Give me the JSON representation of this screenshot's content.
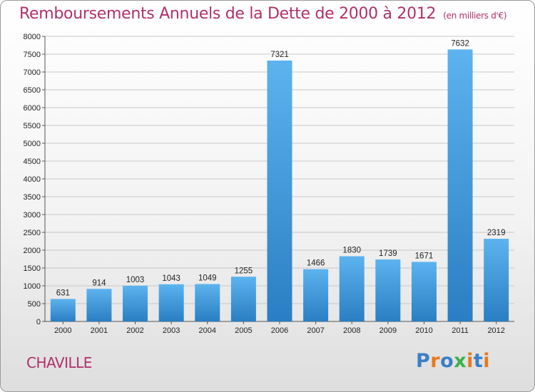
{
  "title": "Remboursements Annuels de la Dette de 2000 à 2012",
  "unit": "(en milliers d'€)",
  "commune": "CHAVILLE",
  "logo": {
    "text": "Proxiti",
    "letters": [
      "P",
      "r",
      "o",
      "x",
      "i",
      "t",
      "i"
    ],
    "colors": [
      "#3a7fc8",
      "#e8791e",
      "#3a7fc8",
      "#3bb24a",
      "#e8791e",
      "#3a7fc8",
      "#e8791e"
    ]
  },
  "colors": {
    "bar": "#4fa6e5",
    "bar_dark": "#2a7ec3",
    "title": "#b0306a"
  },
  "chart_data": {
    "type": "bar",
    "categories": [
      "2000",
      "2001",
      "2002",
      "2003",
      "2004",
      "2005",
      "2006",
      "2007",
      "2008",
      "2009",
      "2010",
      "2011",
      "2012"
    ],
    "values": [
      631,
      914,
      1003,
      1043,
      1049,
      1255,
      7321,
      1466,
      1830,
      1739,
      1671,
      7632,
      2319
    ],
    "value_labels": [
      "631",
      "914",
      "1003",
      "1043",
      "1049",
      "1255",
      "7321",
      "1466",
      "1830",
      "1739",
      "1671",
      "7632",
      "2319"
    ],
    "y_ticks": [
      "0",
      "500",
      "1000",
      "1500",
      "2000",
      "2500",
      "3000",
      "3500",
      "4000",
      "4500",
      "5000",
      "5500",
      "6000",
      "6500",
      "7000",
      "7500",
      "8000"
    ],
    "ylim": [
      0,
      8000
    ],
    "grid": true,
    "title": "Remboursements Annuels de la Dette de 2000 à 2012",
    "xlabel": "",
    "ylabel": ""
  }
}
